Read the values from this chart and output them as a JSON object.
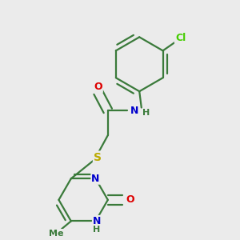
{
  "bg_color": "#ebebeb",
  "bond_color": "#3a7a3a",
  "bond_lw": 1.6,
  "atom_colors": {
    "O": "#dd0000",
    "N": "#0000cc",
    "S": "#bbaa00",
    "Cl": "#44cc00",
    "C": "#3a7a3a",
    "H": "#3a7a3a"
  },
  "font_size": 9
}
